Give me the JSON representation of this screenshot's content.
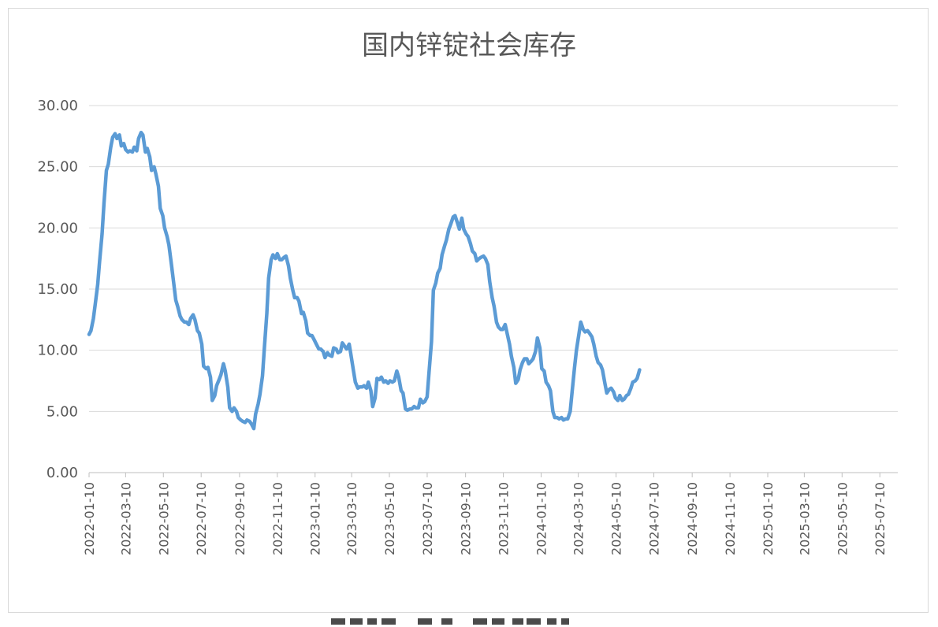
{
  "chart_data": {
    "type": "line",
    "title": "国内锌锭社会库存",
    "xlabel": "",
    "ylabel": "",
    "ylim": [
      0,
      30
    ],
    "y_ticks": [
      "0.00",
      "5.00",
      "10.00",
      "15.00",
      "20.00",
      "25.00",
      "30.00"
    ],
    "x_ticks": [
      "2022-01-10",
      "2022-03-10",
      "2022-05-10",
      "2022-07-10",
      "2022-09-10",
      "2022-11-10",
      "2023-01-10",
      "2023-03-10",
      "2023-05-10",
      "2023-07-10",
      "2023-09-10",
      "2023-11-10",
      "2024-01-10",
      "2024-03-10",
      "2024-05-10",
      "2024-07-10",
      "2024-09-10",
      "2024-11-10",
      "2025-01-10",
      "2025-03-10",
      "2025-05-10",
      "2025-07-10"
    ],
    "x_range": [
      "2022-01-10",
      "2025-08-08"
    ],
    "grid": true,
    "legend": "none",
    "line_color": "#5b9bd5",
    "series": [
      {
        "points": [
          [
            "2022-01-10",
            11.3
          ],
          [
            "2022-01-13",
            11.6
          ],
          [
            "2022-01-17",
            12.6
          ],
          [
            "2022-01-20",
            13.8
          ],
          [
            "2022-01-24",
            15.4
          ],
          [
            "2022-01-27",
            17.3
          ],
          [
            "2022-01-31",
            19.5
          ],
          [
            "2022-02-03",
            22.0
          ],
          [
            "2022-02-07",
            24.7
          ],
          [
            "2022-02-10",
            25.2
          ],
          [
            "2022-02-14",
            26.6
          ],
          [
            "2022-02-17",
            27.4
          ],
          [
            "2022-02-21",
            27.7
          ],
          [
            "2022-02-24",
            27.3
          ],
          [
            "2022-02-28",
            27.6
          ],
          [
            "2022-03-03",
            26.7
          ],
          [
            "2022-03-07",
            26.9
          ],
          [
            "2022-03-10",
            26.4
          ],
          [
            "2022-03-14",
            26.2
          ],
          [
            "2022-03-17",
            26.3
          ],
          [
            "2022-03-21",
            26.2
          ],
          [
            "2022-03-24",
            26.6
          ],
          [
            "2022-03-28",
            26.3
          ],
          [
            "2022-03-31",
            27.3
          ],
          [
            "2022-04-04",
            27.8
          ],
          [
            "2022-04-07",
            27.6
          ],
          [
            "2022-04-11",
            26.2
          ],
          [
            "2022-04-14",
            26.5
          ],
          [
            "2022-04-18",
            25.8
          ],
          [
            "2022-04-21",
            24.7
          ],
          [
            "2022-04-25",
            25.0
          ],
          [
            "2022-04-28",
            24.4
          ],
          [
            "2022-05-02",
            23.4
          ],
          [
            "2022-05-05",
            21.6
          ],
          [
            "2022-05-09",
            21.0
          ],
          [
            "2022-05-12",
            20.0
          ],
          [
            "2022-05-16",
            19.3
          ],
          [
            "2022-05-19",
            18.6
          ],
          [
            "2022-05-23",
            17.0
          ],
          [
            "2022-05-26",
            15.8
          ],
          [
            "2022-05-30",
            14.1
          ],
          [
            "2022-06-02",
            13.6
          ],
          [
            "2022-06-06",
            12.8
          ],
          [
            "2022-06-09",
            12.5
          ],
          [
            "2022-06-13",
            12.3
          ],
          [
            "2022-06-16",
            12.3
          ],
          [
            "2022-06-20",
            12.1
          ],
          [
            "2022-06-23",
            12.6
          ],
          [
            "2022-06-27",
            12.9
          ],
          [
            "2022-06-30",
            12.5
          ],
          [
            "2022-07-04",
            11.6
          ],
          [
            "2022-07-07",
            11.4
          ],
          [
            "2022-07-11",
            10.5
          ],
          [
            "2022-07-14",
            8.7
          ],
          [
            "2022-07-18",
            8.5
          ],
          [
            "2022-07-21",
            8.6
          ],
          [
            "2022-07-25",
            7.8
          ],
          [
            "2022-07-28",
            5.9
          ],
          [
            "2022-08-01",
            6.3
          ],
          [
            "2022-08-04",
            7.1
          ],
          [
            "2022-08-08",
            7.6
          ],
          [
            "2022-08-11",
            8.0
          ],
          [
            "2022-08-15",
            8.9
          ],
          [
            "2022-08-18",
            8.3
          ],
          [
            "2022-08-22",
            7.0
          ],
          [
            "2022-08-25",
            5.3
          ],
          [
            "2022-08-29",
            5.0
          ],
          [
            "2022-09-01",
            5.3
          ],
          [
            "2022-09-05",
            5.0
          ],
          [
            "2022-09-08",
            4.5
          ],
          [
            "2022-09-12",
            4.3
          ],
          [
            "2022-09-15",
            4.2
          ],
          [
            "2022-09-19",
            4.1
          ],
          [
            "2022-09-22",
            4.3
          ],
          [
            "2022-09-26",
            4.2
          ],
          [
            "2022-09-29",
            4.0
          ],
          [
            "2022-10-03",
            3.6
          ],
          [
            "2022-10-06",
            4.8
          ],
          [
            "2022-10-10",
            5.6
          ],
          [
            "2022-10-13",
            6.4
          ],
          [
            "2022-10-17",
            7.9
          ],
          [
            "2022-10-20",
            10.1
          ],
          [
            "2022-10-24",
            13.0
          ],
          [
            "2022-10-27",
            15.9
          ],
          [
            "2022-10-31",
            17.4
          ],
          [
            "2022-11-03",
            17.8
          ],
          [
            "2022-11-07",
            17.5
          ],
          [
            "2022-11-10",
            17.9
          ],
          [
            "2022-11-14",
            17.4
          ],
          [
            "2022-11-17",
            17.4
          ],
          [
            "2022-11-21",
            17.6
          ],
          [
            "2022-11-24",
            17.7
          ],
          [
            "2022-11-28",
            16.9
          ],
          [
            "2022-12-01",
            15.9
          ],
          [
            "2022-12-05",
            14.9
          ],
          [
            "2022-12-08",
            14.3
          ],
          [
            "2022-12-12",
            14.3
          ],
          [
            "2022-12-15",
            14.0
          ],
          [
            "2022-12-19",
            13.0
          ],
          [
            "2022-12-22",
            13.1
          ],
          [
            "2022-12-26",
            12.4
          ],
          [
            "2022-12-29",
            11.4
          ],
          [
            "2023-01-02",
            11.2
          ],
          [
            "2023-01-05",
            11.2
          ],
          [
            "2023-01-09",
            10.8
          ],
          [
            "2023-01-12",
            10.5
          ],
          [
            "2023-01-16",
            10.1
          ],
          [
            "2023-01-19",
            10.1
          ],
          [
            "2023-01-23",
            9.9
          ],
          [
            "2023-01-26",
            9.4
          ],
          [
            "2023-01-30",
            9.8
          ],
          [
            "2023-02-02",
            9.6
          ],
          [
            "2023-02-06",
            9.5
          ],
          [
            "2023-02-09",
            10.2
          ],
          [
            "2023-02-13",
            10.1
          ],
          [
            "2023-02-16",
            9.8
          ],
          [
            "2023-02-20",
            9.9
          ],
          [
            "2023-02-23",
            10.6
          ],
          [
            "2023-02-27",
            10.3
          ],
          [
            "2023-03-02",
            10.1
          ],
          [
            "2023-03-06",
            10.5
          ],
          [
            "2023-03-09",
            9.6
          ],
          [
            "2023-03-13",
            8.3
          ],
          [
            "2023-03-16",
            7.4
          ],
          [
            "2023-03-20",
            6.9
          ],
          [
            "2023-03-23",
            7.0
          ],
          [
            "2023-03-27",
            7.0
          ],
          [
            "2023-03-30",
            7.1
          ],
          [
            "2023-04-03",
            6.9
          ],
          [
            "2023-04-06",
            7.4
          ],
          [
            "2023-04-10",
            6.7
          ],
          [
            "2023-04-13",
            5.4
          ],
          [
            "2023-04-17",
            6.1
          ],
          [
            "2023-04-20",
            7.7
          ],
          [
            "2023-04-24",
            7.6
          ],
          [
            "2023-04-27",
            7.8
          ],
          [
            "2023-05-01",
            7.4
          ],
          [
            "2023-05-04",
            7.5
          ],
          [
            "2023-05-08",
            7.3
          ],
          [
            "2023-05-11",
            7.5
          ],
          [
            "2023-05-15",
            7.4
          ],
          [
            "2023-05-18",
            7.5
          ],
          [
            "2023-05-22",
            8.3
          ],
          [
            "2023-05-25",
            7.8
          ],
          [
            "2023-05-29",
            6.7
          ],
          [
            "2023-06-01",
            6.5
          ],
          [
            "2023-06-05",
            5.2
          ],
          [
            "2023-06-08",
            5.1
          ],
          [
            "2023-06-12",
            5.2
          ],
          [
            "2023-06-15",
            5.2
          ],
          [
            "2023-06-19",
            5.4
          ],
          [
            "2023-06-22",
            5.3
          ],
          [
            "2023-06-26",
            5.3
          ],
          [
            "2023-06-29",
            6.0
          ],
          [
            "2023-07-03",
            5.7
          ],
          [
            "2023-07-06",
            5.8
          ],
          [
            "2023-07-10",
            6.2
          ],
          [
            "2023-07-13",
            8.2
          ],
          [
            "2023-07-17",
            10.7
          ],
          [
            "2023-07-20",
            14.9
          ],
          [
            "2023-07-24",
            15.5
          ],
          [
            "2023-07-27",
            16.3
          ],
          [
            "2023-07-31",
            16.7
          ],
          [
            "2023-08-03",
            17.8
          ],
          [
            "2023-08-07",
            18.5
          ],
          [
            "2023-08-10",
            19.0
          ],
          [
            "2023-08-14",
            19.9
          ],
          [
            "2023-08-17",
            20.3
          ],
          [
            "2023-08-21",
            20.9
          ],
          [
            "2023-08-24",
            21.0
          ],
          [
            "2023-08-28",
            20.4
          ],
          [
            "2023-08-31",
            19.9
          ],
          [
            "2023-09-04",
            20.8
          ],
          [
            "2023-09-07",
            19.9
          ],
          [
            "2023-09-11",
            19.5
          ],
          [
            "2023-09-14",
            19.3
          ],
          [
            "2023-09-18",
            18.7
          ],
          [
            "2023-09-21",
            18.1
          ],
          [
            "2023-09-25",
            17.9
          ],
          [
            "2023-09-28",
            17.3
          ],
          [
            "2023-10-02",
            17.5
          ],
          [
            "2023-10-05",
            17.6
          ],
          [
            "2023-10-09",
            17.7
          ],
          [
            "2023-10-12",
            17.5
          ],
          [
            "2023-10-16",
            17.0
          ],
          [
            "2023-10-19",
            15.6
          ],
          [
            "2023-10-23",
            14.3
          ],
          [
            "2023-10-26",
            13.6
          ],
          [
            "2023-10-30",
            12.3
          ],
          [
            "2023-11-02",
            11.9
          ],
          [
            "2023-11-06",
            11.7
          ],
          [
            "2023-11-09",
            11.7
          ],
          [
            "2023-11-13",
            12.1
          ],
          [
            "2023-11-16",
            11.4
          ],
          [
            "2023-11-20",
            10.5
          ],
          [
            "2023-11-23",
            9.5
          ],
          [
            "2023-11-27",
            8.6
          ],
          [
            "2023-11-30",
            7.3
          ],
          [
            "2023-12-04",
            7.6
          ],
          [
            "2023-12-07",
            8.4
          ],
          [
            "2023-12-11",
            9.0
          ],
          [
            "2023-12-14",
            9.3
          ],
          [
            "2023-12-18",
            9.3
          ],
          [
            "2023-12-21",
            8.9
          ],
          [
            "2023-12-25",
            9.1
          ],
          [
            "2023-12-28",
            9.3
          ],
          [
            "2024-01-01",
            9.9
          ],
          [
            "2024-01-04",
            11.0
          ],
          [
            "2024-01-08",
            10.2
          ],
          [
            "2024-01-11",
            8.5
          ],
          [
            "2024-01-15",
            8.3
          ],
          [
            "2024-01-18",
            7.4
          ],
          [
            "2024-01-22",
            7.1
          ],
          [
            "2024-01-25",
            6.7
          ],
          [
            "2024-01-29",
            5.0
          ],
          [
            "2024-02-01",
            4.5
          ],
          [
            "2024-02-05",
            4.5
          ],
          [
            "2024-02-08",
            4.4
          ],
          [
            "2024-02-12",
            4.5
          ],
          [
            "2024-02-15",
            4.3
          ],
          [
            "2024-02-19",
            4.4
          ],
          [
            "2024-02-22",
            4.4
          ],
          [
            "2024-02-26",
            5.0
          ],
          [
            "2024-02-29",
            6.6
          ],
          [
            "2024-03-04",
            8.6
          ],
          [
            "2024-03-07",
            10.0
          ],
          [
            "2024-03-11",
            11.3
          ],
          [
            "2024-03-14",
            12.3
          ],
          [
            "2024-03-18",
            11.7
          ],
          [
            "2024-03-21",
            11.5
          ],
          [
            "2024-03-25",
            11.6
          ],
          [
            "2024-03-28",
            11.4
          ],
          [
            "2024-04-01",
            11.1
          ],
          [
            "2024-04-04",
            10.5
          ],
          [
            "2024-04-08",
            9.5
          ],
          [
            "2024-04-11",
            9.0
          ],
          [
            "2024-04-15",
            8.8
          ],
          [
            "2024-04-18",
            8.4
          ],
          [
            "2024-04-22",
            7.3
          ],
          [
            "2024-04-25",
            6.5
          ],
          [
            "2024-04-29",
            6.8
          ],
          [
            "2024-05-02",
            6.9
          ],
          [
            "2024-05-06",
            6.6
          ],
          [
            "2024-05-09",
            6.1
          ],
          [
            "2024-05-13",
            5.9
          ],
          [
            "2024-05-16",
            6.3
          ],
          [
            "2024-05-20",
            5.9
          ],
          [
            "2024-05-23",
            6.0
          ],
          [
            "2024-05-27",
            6.3
          ],
          [
            "2024-05-30",
            6.4
          ],
          [
            "2024-06-03",
            6.9
          ],
          [
            "2024-06-06",
            7.4
          ],
          [
            "2024-06-10",
            7.5
          ],
          [
            "2024-06-13",
            7.7
          ],
          [
            "2024-06-17",
            8.4
          ]
        ]
      }
    ]
  },
  "caption": {
    "glyphs": [
      [
        420,
        18
      ],
      [
        444,
        16
      ],
      [
        466,
        12
      ],
      [
        484,
        18
      ],
      [
        530,
        18
      ],
      [
        560,
        14
      ],
      [
        600,
        18
      ],
      [
        624,
        16
      ],
      [
        650,
        14
      ],
      [
        668,
        18
      ],
      [
        694,
        12
      ],
      [
        712,
        10
      ]
    ]
  }
}
